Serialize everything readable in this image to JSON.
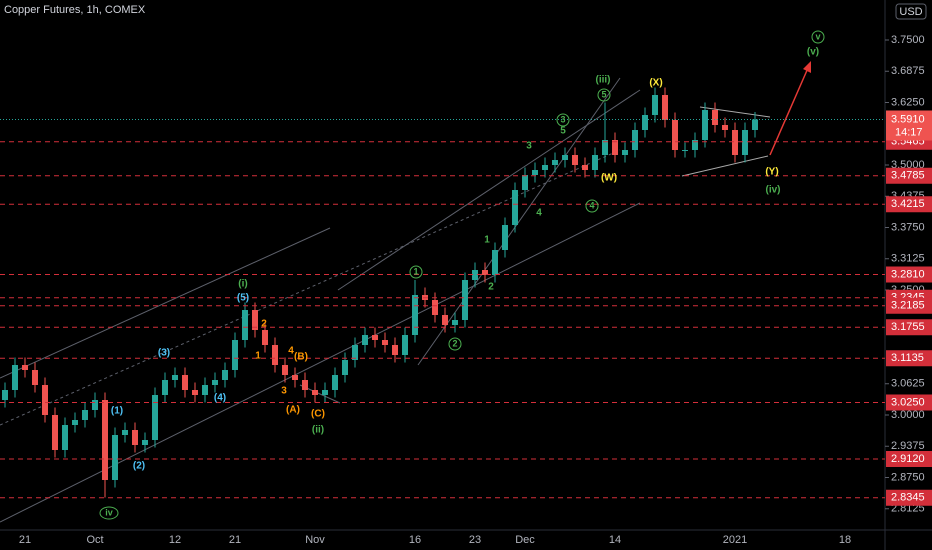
{
  "chart_data": {
    "type": "candlestick",
    "title": "Copper Futures, 1h, COMEX",
    "currency": "USD",
    "up_color": "#26a69a",
    "down_color": "#ef5350",
    "level_color": "#d32f3a",
    "categories": [
      null,
      null,
      "21",
      null,
      null,
      null,
      null,
      null,
      null,
      "Oct",
      null,
      null,
      null,
      null,
      null,
      null,
      null,
      "12",
      null,
      null,
      null,
      null,
      null,
      "21",
      null,
      null,
      null,
      null,
      null,
      null,
      null,
      "Nov",
      null,
      null,
      null,
      null,
      null,
      null,
      null,
      null,
      null,
      "16",
      null,
      null,
      null,
      null,
      null,
      "23",
      null,
      null,
      null,
      null,
      "Dec",
      null,
      null,
      null,
      null,
      null,
      null,
      null,
      null,
      "14",
      null,
      null,
      null,
      null,
      null,
      null,
      null,
      null,
      null,
      null,
      null,
      "2021",
      null,
      null,
      null,
      null,
      null,
      null,
      null,
      null,
      null,
      null,
      "18",
      null,
      null,
      null
    ],
    "open": [
      3.03,
      3.05,
      3.1,
      3.09,
      3.06,
      3.0,
      2.93,
      2.98,
      2.99,
      3.01,
      3.03,
      2.87,
      2.96,
      2.97,
      2.94,
      2.95,
      3.04,
      3.07,
      3.08,
      3.05,
      3.04,
      3.06,
      3.07,
      3.09,
      3.15,
      3.21,
      3.17,
      3.14,
      3.1,
      3.08,
      3.07,
      3.05,
      3.04,
      3.05,
      3.08,
      3.11,
      3.14,
      3.16,
      3.15,
      3.14,
      3.12,
      3.16,
      3.24,
      3.23,
      3.2,
      3.18,
      3.19,
      3.27,
      3.29,
      3.28,
      3.33,
      3.38,
      3.45,
      3.48,
      3.49,
      3.5,
      3.51,
      3.52,
      3.5,
      3.49,
      3.52,
      3.55,
      3.52,
      3.53,
      3.57,
      3.6,
      3.64,
      3.59,
      3.53,
      3.53,
      3.55,
      3.61,
      3.58,
      3.57,
      3.52,
      3.57,
      null,
      null,
      null,
      null,
      null,
      null,
      null,
      null,
      null,
      null,
      null,
      null
    ],
    "high": [
      3.065,
      3.115,
      3.115,
      3.105,
      3.075,
      3.015,
      2.995,
      3.005,
      3.025,
      3.045,
      3.045,
      2.975,
      2.985,
      2.985,
      2.965,
      3.055,
      3.085,
      3.095,
      3.095,
      3.065,
      3.075,
      3.085,
      3.105,
      3.165,
      3.225,
      3.225,
      3.185,
      3.155,
      3.115,
      3.095,
      3.085,
      3.065,
      3.065,
      3.095,
      3.125,
      3.155,
      3.175,
      3.175,
      3.165,
      3.155,
      3.175,
      3.27,
      3.255,
      3.245,
      3.215,
      3.205,
      3.285,
      3.305,
      3.305,
      3.345,
      3.395,
      3.465,
      3.495,
      3.505,
      3.515,
      3.525,
      3.535,
      3.535,
      3.515,
      3.535,
      3.625,
      3.565,
      3.545,
      3.585,
      3.615,
      3.655,
      3.655,
      3.605,
      3.545,
      3.565,
      3.625,
      3.625,
      3.595,
      3.585,
      3.585,
      3.606,
      null,
      null,
      null,
      null,
      null,
      null,
      null,
      null,
      null,
      null,
      null,
      null
    ],
    "low": [
      3.015,
      3.035,
      3.075,
      3.045,
      2.985,
      2.915,
      2.915,
      2.965,
      2.975,
      2.995,
      2.835,
      2.855,
      2.945,
      2.925,
      2.925,
      2.935,
      3.025,
      3.055,
      3.035,
      3.025,
      3.025,
      3.045,
      3.055,
      3.075,
      3.135,
      3.155,
      3.125,
      3.085,
      3.065,
      3.055,
      3.035,
      3.025,
      3.025,
      3.035,
      3.065,
      3.095,
      3.125,
      3.135,
      3.125,
      3.105,
      3.105,
      3.145,
      3.215,
      3.185,
      3.165,
      3.165,
      3.175,
      3.255,
      3.265,
      3.265,
      3.315,
      3.365,
      3.435,
      3.465,
      3.475,
      3.485,
      3.495,
      3.485,
      3.475,
      3.475,
      3.505,
      3.505,
      3.505,
      3.515,
      3.555,
      3.585,
      3.575,
      3.515,
      3.515,
      3.515,
      3.535,
      3.565,
      3.555,
      3.505,
      3.505,
      3.555,
      null,
      null,
      null,
      null,
      null,
      null,
      null,
      null,
      null,
      null,
      null,
      null
    ],
    "close": [
      3.05,
      3.1,
      3.09,
      3.06,
      3.0,
      2.93,
      2.98,
      2.99,
      3.01,
      3.03,
      2.87,
      2.96,
      2.97,
      2.94,
      2.95,
      3.04,
      3.07,
      3.08,
      3.05,
      3.04,
      3.06,
      3.07,
      3.09,
      3.15,
      3.21,
      3.17,
      3.14,
      3.1,
      3.08,
      3.07,
      3.05,
      3.04,
      3.05,
      3.08,
      3.11,
      3.14,
      3.16,
      3.15,
      3.14,
      3.12,
      3.16,
      3.24,
      3.23,
      3.2,
      3.18,
      3.19,
      3.27,
      3.29,
      3.28,
      3.33,
      3.38,
      3.45,
      3.48,
      3.49,
      3.5,
      3.51,
      3.52,
      3.5,
      3.49,
      3.52,
      3.55,
      3.52,
      3.53,
      3.57,
      3.6,
      3.64,
      3.59,
      3.53,
      3.53,
      3.55,
      3.61,
      3.58,
      3.57,
      3.52,
      3.57,
      3.591,
      null,
      null,
      null,
      null,
      null,
      null,
      null,
      null,
      null,
      null,
      null,
      null
    ],
    "ylim": [
      2.77,
      3.83
    ],
    "yticks": [
      {
        "value": 3.75,
        "label": "3.7500"
      },
      3.6875,
      {
        "value": 3.625,
        "label": "3.6250"
      },
      {
        "value": 3.5,
        "label": "3.5000"
      },
      3.4375,
      {
        "value": 3.375,
        "label": "3.3750"
      },
      3.3125,
      {
        "value": 3.25,
        "label": "3.2500"
      },
      3.0625,
      {
        "value": 3.0,
        "label": "3.0000"
      },
      2.9375,
      {
        "value": 2.875,
        "label": "2.8750"
      },
      2.8125
    ],
    "levels": [
      3.5465,
      3.4785,
      3.4215,
      {
        "value": 3.281,
        "label": "3.2810"
      },
      3.2345,
      3.2185,
      3.1755,
      3.1135,
      {
        "value": 3.025,
        "label": "3.0250"
      },
      {
        "value": 2.912,
        "label": "2.9120"
      },
      2.8345
    ],
    "last_price": {
      "value": 3.591,
      "label": "3.5910"
    },
    "countdown": "14:17",
    "annotations": [
      {
        "text": "(iii)",
        "color": "#4caf50"
      },
      {
        "text": "(i)",
        "color": "#4caf50"
      },
      {
        "text": "(ii)",
        "color": "#4caf50"
      },
      {
        "text": "iv",
        "color": "#4caf50"
      },
      {
        "text": "(v)",
        "color": "#4caf50"
      },
      {
        "text": "v",
        "color": "#4caf50"
      },
      {
        "text": "(iv)",
        "color": "#4caf50"
      },
      {
        "text": "1",
        "color": "#4caf50"
      },
      {
        "text": "2",
        "color": "#4caf50"
      },
      {
        "text": "3",
        "color": "#4caf50"
      },
      {
        "text": "4",
        "color": "#4caf50"
      },
      {
        "text": "5",
        "color": "#4caf50"
      },
      {
        "text": "3",
        "color": "#4caf50"
      },
      {
        "text": "5",
        "color": "#4caf50"
      },
      {
        "text": "4",
        "color": "#4caf50"
      },
      {
        "text": "1",
        "color": "#4caf50"
      },
      {
        "text": "2",
        "color": "#4caf50"
      },
      {
        "text": "(5)",
        "color": "#4fc3f7"
      },
      {
        "text": "(3)",
        "color": "#4fc3f7"
      },
      {
        "text": "(4)",
        "color": "#4fc3f7"
      },
      {
        "text": "(1)",
        "color": "#4fc3f7"
      },
      {
        "text": "(2)",
        "color": "#4fc3f7"
      },
      {
        "text": "2",
        "color": "#ff9800"
      },
      {
        "text": "1",
        "color": "#ff9800"
      },
      {
        "text": "4",
        "color": "#ff9800"
      },
      {
        "text": "(B)",
        "color": "#ff9800"
      },
      {
        "text": "3",
        "color": "#ff9800"
      },
      {
        "text": "(A)",
        "color": "#ff9800"
      },
      {
        "text": "(C)",
        "color": "#ff9800"
      },
      {
        "text": "(X)",
        "color": "#ffeb3b"
      },
      {
        "text": "(W)",
        "color": "#ffeb3b"
      },
      {
        "text": "(Y)",
        "color": "#ffeb3b"
      }
    ]
  }
}
